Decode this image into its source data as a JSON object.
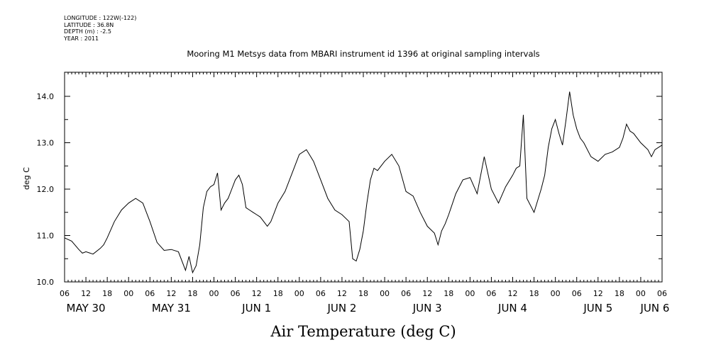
{
  "meta": {
    "longitude": "LONGITUDE : 122W(-122)",
    "latitude": "LATITUDE : 36.8N",
    "depth": "DEPTH (m) : -2.5",
    "year": "YEAR : 2011"
  },
  "chart_data": {
    "type": "line",
    "title": "Mooring M1 Metsys data from MBARI instrument id 1396 at original sampling intervals",
    "xlabel": "Air Temperature (deg C)",
    "ylabel": "deg C",
    "ylim": [
      10.0,
      14.4
    ],
    "xlim_hours": [
      0,
      168
    ],
    "y_ticks": [
      "10.0",
      "11.0",
      "12.0",
      "13.0",
      "14.0"
    ],
    "x_ticks": [
      "06",
      "12",
      "18",
      "00",
      "06",
      "12",
      "18",
      "00",
      "06",
      "12",
      "18",
      "00",
      "06",
      "12",
      "18",
      "00",
      "06",
      "12",
      "18",
      "00",
      "06",
      "12",
      "18",
      "00",
      "06",
      "12",
      "18",
      "00",
      "06"
    ],
    "day_labels": [
      "MAY 30",
      "MAY 31",
      "JUN  1",
      "JUN  2",
      "JUN  3",
      "JUN  4",
      "JUN  5",
      "JUN 6"
    ],
    "grid": false,
    "series": [
      {
        "x": [
          0,
          2,
          4,
          5,
          6,
          8,
          10,
          11,
          12,
          14,
          16,
          18,
          20,
          22,
          24,
          26,
          28,
          30,
          32,
          34,
          35,
          36,
          37,
          38,
          39,
          40,
          41,
          42,
          43,
          44,
          45,
          46,
          47,
          48,
          49,
          50,
          51,
          52,
          53,
          54,
          55,
          56,
          57,
          58,
          59,
          60,
          62,
          64,
          66,
          68,
          70,
          72,
          74,
          76,
          78,
          80,
          81,
          82,
          83,
          84,
          85,
          86,
          87,
          88,
          90,
          92,
          94,
          96,
          98,
          100,
          102,
          104,
          105,
          106,
          107,
          108,
          110,
          112,
          114,
          116,
          118,
          120,
          122,
          124,
          126,
          127,
          128,
          129,
          130,
          132,
          134,
          135,
          136,
          137,
          138,
          139,
          140,
          141,
          142,
          143,
          144,
          145,
          146,
          148,
          150,
          152,
          154,
          156,
          157,
          158,
          159,
          160,
          162,
          164,
          165,
          166,
          168
        ],
        "values": [
          10.95,
          10.88,
          10.7,
          10.62,
          10.65,
          10.6,
          10.72,
          10.8,
          10.95,
          11.3,
          11.55,
          11.7,
          11.8,
          11.7,
          11.3,
          10.85,
          10.68,
          10.7,
          10.65,
          10.25,
          10.55,
          10.2,
          10.35,
          10.8,
          11.6,
          11.95,
          12.05,
          12.1,
          12.35,
          11.55,
          11.7,
          11.8,
          12.0,
          12.2,
          12.3,
          12.1,
          11.6,
          11.55,
          11.5,
          11.45,
          11.4,
          11.3,
          11.2,
          11.3,
          11.5,
          11.7,
          11.95,
          12.35,
          12.75,
          12.85,
          12.6,
          12.2,
          11.8,
          11.55,
          11.45,
          11.3,
          10.5,
          10.45,
          10.7,
          11.1,
          11.7,
          12.2,
          12.45,
          12.4,
          12.6,
          12.75,
          12.5,
          11.95,
          11.85,
          11.5,
          11.2,
          11.05,
          10.8,
          11.1,
          11.25,
          11.45,
          11.9,
          12.2,
          12.25,
          11.9,
          12.7,
          12.0,
          11.7,
          12.05,
          12.3,
          12.45,
          12.5,
          13.6,
          11.8,
          11.5,
          12.0,
          12.3,
          12.9,
          13.3,
          13.5,
          13.2,
          12.95,
          13.5,
          14.1,
          13.6,
          13.3,
          13.1,
          13.0,
          12.7,
          12.6,
          12.75,
          12.8,
          12.9,
          13.1,
          13.4,
          13.25,
          13.2,
          13.0,
          12.85,
          12.7,
          12.85,
          12.95
        ]
      }
    ]
  }
}
